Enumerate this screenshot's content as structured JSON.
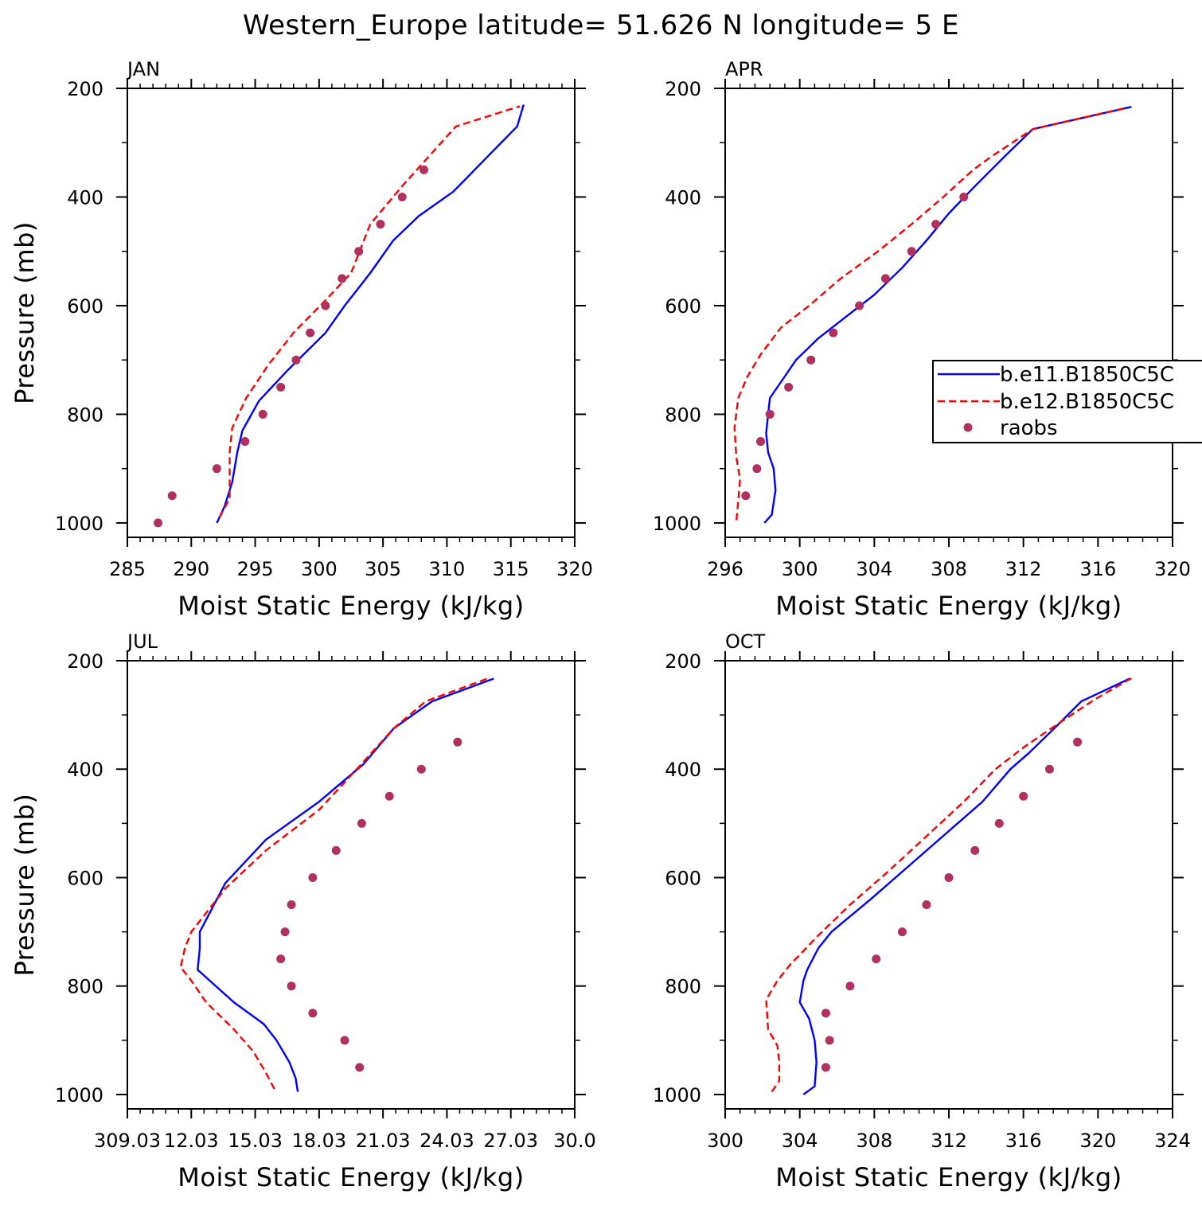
{
  "title": "Western_Europe  latitude= 51.626 N longitude= 5 E",
  "colors": {
    "model1": "#0000ff",
    "model2": "#ff0000",
    "raobs": "#b03060"
  },
  "legend": {
    "entries": [
      "b.e11.B1850C5C",
      "b.e12.B1850C5C",
      "raobs"
    ]
  },
  "chart_data": [
    {
      "type": "line",
      "panel": "JAN",
      "xlabel": "Moist Static Energy (kJ/kg)",
      "ylabel": "Pressure (mb)",
      "xlim": [
        285,
        320
      ],
      "ylim": [
        200,
        1000
      ],
      "y_inverted": true,
      "x_ticks": [
        "285",
        "290",
        "295",
        "300",
        "305",
        "310",
        "315",
        "320"
      ],
      "x_tick_values": [
        285,
        290,
        295,
        300,
        305,
        310,
        315,
        320
      ],
      "y_ticks": [
        "200",
        "400",
        "600",
        "800",
        "1000"
      ],
      "series": [
        {
          "name": "b.e11.B1850C5C",
          "style": "solid",
          "points": [
            [
              292.0,
              1000
            ],
            [
              292.6,
              970
            ],
            [
              293.2,
              925
            ],
            [
              293.6,
              870
            ],
            [
              294.0,
              830
            ],
            [
              295.3,
              775
            ],
            [
              297.5,
              720
            ],
            [
              300.5,
              650
            ],
            [
              302.0,
              600
            ],
            [
              304.0,
              540
            ],
            [
              305.8,
              480
            ],
            [
              307.8,
              435
            ],
            [
              310.5,
              390
            ],
            [
              313.0,
              330
            ],
            [
              315.5,
              270
            ],
            [
              316.0,
              230
            ]
          ]
        },
        {
          "name": "b.e12.B1850C5C",
          "style": "dashed",
          "points": [
            [
              292.2,
              990
            ],
            [
              293.0,
              955
            ],
            [
              293.0,
              910
            ],
            [
              293.0,
              870
            ],
            [
              293.2,
              825
            ],
            [
              294.3,
              770
            ],
            [
              296.0,
              710
            ],
            [
              298.0,
              650
            ],
            [
              300.3,
              595
            ],
            [
              302.5,
              540
            ],
            [
              304.0,
              450
            ],
            [
              306.5,
              380
            ],
            [
              308.6,
              325
            ],
            [
              310.7,
              270
            ],
            [
              315.7,
              233
            ]
          ]
        },
        {
          "name": "raobs",
          "style": "dots",
          "points": [
            [
              287.4,
              1000
            ],
            [
              288.5,
              950
            ],
            [
              292.0,
              900
            ],
            [
              294.2,
              850
            ],
            [
              295.6,
              800
            ],
            [
              297.0,
              750
            ],
            [
              298.2,
              700
            ],
            [
              299.3,
              650
            ],
            [
              300.5,
              600
            ],
            [
              301.8,
              550
            ],
            [
              303.1,
              500
            ],
            [
              304.8,
              450
            ],
            [
              306.5,
              400
            ],
            [
              308.2,
              350
            ]
          ]
        }
      ]
    },
    {
      "type": "line",
      "panel": "APR",
      "xlabel": "Moist Static Energy (kJ/kg)",
      "ylabel": "",
      "xlim": [
        296,
        320
      ],
      "ylim": [
        200,
        1000
      ],
      "y_inverted": true,
      "x_ticks": [
        "296",
        "300",
        "304",
        "308",
        "312",
        "316",
        "320"
      ],
      "x_tick_values": [
        296,
        300,
        304,
        308,
        312,
        316,
        320
      ],
      "y_ticks": [
        "200",
        "400",
        "600",
        "800",
        "1000"
      ],
      "series": [
        {
          "name": "b.e11.B1850C5C",
          "style": "solid",
          "points": [
            [
              298.1,
              1000
            ],
            [
              298.5,
              985
            ],
            [
              298.7,
              940
            ],
            [
              298.6,
              900
            ],
            [
              298.3,
              870
            ],
            [
              298.2,
              835
            ],
            [
              298.3,
              800
            ],
            [
              298.4,
              770
            ],
            [
              299.0,
              740
            ],
            [
              299.8,
              700
            ],
            [
              301.0,
              660
            ],
            [
              302.5,
              620
            ],
            [
              304.0,
              580
            ],
            [
              305.5,
              530
            ],
            [
              306.8,
              480
            ],
            [
              308.0,
              430
            ],
            [
              309.4,
              380
            ],
            [
              311.0,
              325
            ],
            [
              312.5,
              275
            ],
            [
              317.8,
              234
            ]
          ]
        },
        {
          "name": "b.e12.B1850C5C",
          "style": "dashed",
          "points": [
            [
              296.6,
              995
            ],
            [
              296.7,
              960
            ],
            [
              296.8,
              920
            ],
            [
              296.6,
              880
            ],
            [
              296.5,
              825
            ],
            [
              296.7,
              770
            ],
            [
              297.2,
              730
            ],
            [
              297.9,
              690
            ],
            [
              299.0,
              640
            ],
            [
              300.5,
              600
            ],
            [
              302.2,
              550
            ],
            [
              304.2,
              500
            ],
            [
              306.0,
              450
            ],
            [
              307.7,
              400
            ],
            [
              309.3,
              350
            ],
            [
              310.3,
              325
            ],
            [
              312.5,
              275
            ],
            [
              317.5,
              236
            ]
          ]
        },
        {
          "name": "raobs",
          "style": "dots",
          "points": [
            [
              297.1,
              950
            ],
            [
              297.7,
              900
            ],
            [
              297.9,
              850
            ],
            [
              298.4,
              800
            ],
            [
              299.4,
              750
            ],
            [
              300.6,
              700
            ],
            [
              301.8,
              650
            ],
            [
              303.2,
              600
            ],
            [
              304.6,
              550
            ],
            [
              306.0,
              500
            ],
            [
              307.3,
              450
            ],
            [
              308.8,
              400
            ]
          ]
        }
      ]
    },
    {
      "type": "line",
      "panel": "JUL",
      "xlabel": "Moist Static Energy (kJ/kg)",
      "ylabel": "Pressure (mb)",
      "xlim": [
        309.0,
        330.0
      ],
      "ylim": [
        200,
        1000
      ],
      "y_inverted": true,
      "x_ticks": [
        "309.03",
        "12.03",
        "15.03",
        "18.03",
        "21.03",
        "24.03",
        "27.03",
        "30.0"
      ],
      "x_tick_values": [
        309.0,
        312.0,
        315.0,
        318.0,
        321.0,
        324.0,
        327.0,
        330.0
      ],
      "y_ticks": [
        "200",
        "400",
        "600",
        "800",
        "1000"
      ],
      "series": [
        {
          "name": "b.e11.B1850C5C",
          "style": "solid",
          "points": [
            [
              317.0,
              995
            ],
            [
              316.9,
              970
            ],
            [
              316.6,
              940
            ],
            [
              316.0,
              900
            ],
            [
              315.4,
              870
            ],
            [
              314.0,
              830
            ],
            [
              312.3,
              770
            ],
            [
              312.4,
              730
            ],
            [
              312.4,
              700
            ],
            [
              313.6,
              610
            ],
            [
              315.5,
              530
            ],
            [
              318.0,
              460
            ],
            [
              320.1,
              390
            ],
            [
              321.5,
              325
            ],
            [
              323.3,
              275
            ],
            [
              326.2,
              233
            ]
          ]
        },
        {
          "name": "b.e12.B1850C5C",
          "style": "dashed",
          "points": [
            [
              315.9,
              990
            ],
            [
              315.5,
              960
            ],
            [
              314.9,
              920
            ],
            [
              314.0,
              880
            ],
            [
              312.7,
              830
            ],
            [
              312.0,
              790
            ],
            [
              311.5,
              765
            ],
            [
              311.7,
              730
            ],
            [
              312.0,
              700
            ],
            [
              313.6,
              620
            ],
            [
              315.5,
              550
            ],
            [
              318.0,
              475
            ],
            [
              320.0,
              390
            ],
            [
              321.5,
              325
            ],
            [
              323.0,
              275
            ],
            [
              325.9,
              233
            ]
          ]
        },
        {
          "name": "raobs",
          "style": "dots",
          "points": [
            [
              319.9,
              950
            ],
            [
              319.2,
              900
            ],
            [
              317.7,
              850
            ],
            [
              316.7,
              800
            ],
            [
              316.2,
              750
            ],
            [
              316.4,
              700
            ],
            [
              316.7,
              650
            ],
            [
              317.7,
              600
            ],
            [
              318.8,
              550
            ],
            [
              320.0,
              500
            ],
            [
              321.3,
              450
            ],
            [
              322.8,
              400
            ],
            [
              324.5,
              350
            ]
          ]
        }
      ]
    },
    {
      "type": "line",
      "panel": "OCT",
      "xlabel": "Moist Static Energy (kJ/kg)",
      "ylabel": "",
      "xlim": [
        300,
        324
      ],
      "ylim": [
        200,
        1000
      ],
      "y_inverted": true,
      "x_ticks": [
        "300",
        "304",
        "308",
        "312",
        "316",
        "320",
        "324"
      ],
      "x_tick_values": [
        300,
        304,
        308,
        312,
        316,
        320,
        324
      ],
      "y_ticks": [
        "200",
        "400",
        "600",
        "800",
        "1000"
      ],
      "series": [
        {
          "name": "b.e11.B1850C5C",
          "style": "solid",
          "points": [
            [
              304.2,
              1000
            ],
            [
              304.8,
              985
            ],
            [
              304.9,
              940
            ],
            [
              304.8,
              900
            ],
            [
              304.5,
              860
            ],
            [
              304.0,
              830
            ],
            [
              304.2,
              790
            ],
            [
              304.4,
              770
            ],
            [
              305.0,
              730
            ],
            [
              305.7,
              700
            ],
            [
              307.8,
              640
            ],
            [
              309.8,
              580
            ],
            [
              311.8,
              520
            ],
            [
              313.8,
              460
            ],
            [
              315.3,
              400
            ],
            [
              316.3,
              370
            ],
            [
              317.8,
              320
            ],
            [
              319.1,
              275
            ],
            [
              321.7,
              233
            ]
          ]
        },
        {
          "name": "b.e12.B1850C5C",
          "style": "dashed",
          "points": [
            [
              302.5,
              995
            ],
            [
              302.9,
              975
            ],
            [
              302.9,
              940
            ],
            [
              302.8,
              910
            ],
            [
              302.3,
              880
            ],
            [
              302.2,
              825
            ],
            [
              302.8,
              790
            ],
            [
              303.5,
              760
            ],
            [
              304.9,
              710
            ],
            [
              306.7,
              650
            ],
            [
              308.7,
              590
            ],
            [
              310.6,
              530
            ],
            [
              312.8,
              460
            ],
            [
              314.5,
              400
            ],
            [
              316.0,
              360
            ],
            [
              317.7,
              320
            ],
            [
              319.8,
              272
            ],
            [
              321.8,
              232
            ]
          ]
        },
        {
          "name": "raobs",
          "style": "dots",
          "points": [
            [
              305.4,
              950
            ],
            [
              305.6,
              900
            ],
            [
              305.4,
              850
            ],
            [
              306.7,
              800
            ],
            [
              308.1,
              750
            ],
            [
              309.5,
              700
            ],
            [
              310.8,
              650
            ],
            [
              312.0,
              600
            ],
            [
              313.4,
              550
            ],
            [
              314.7,
              500
            ],
            [
              316.0,
              450
            ],
            [
              317.4,
              400
            ],
            [
              318.9,
              350
            ]
          ]
        }
      ]
    }
  ]
}
